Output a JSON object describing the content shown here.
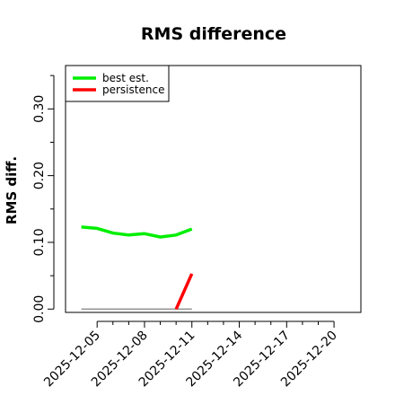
{
  "chart_data": {
    "type": "line",
    "title": "RMS difference",
    "xlabel": "",
    "ylabel": "RMS diff.",
    "x_ticks": [
      "2025-12-05",
      "2025-12-08",
      "2025-12-11",
      "2025-12-14",
      "2025-12-17",
      "2025-12-20"
    ],
    "x_tick_days": [
      5,
      8,
      11,
      14,
      17,
      20
    ],
    "xlim_days": [
      3,
      21.7
    ],
    "ylim": [
      -0.005,
      0.365
    ],
    "y_ticks": [
      0.0,
      0.1,
      0.2,
      0.3
    ],
    "y_tick_labels": [
      "0.00",
      "0.10",
      "0.20",
      "0.30"
    ],
    "y_minor_ticks": [
      0.05,
      0.15,
      0.25,
      0.35
    ],
    "legend": {
      "position": "top-left",
      "entries": [
        "best est.",
        "persistence"
      ]
    },
    "colors": {
      "best_est": "#00ee00",
      "persistence": "#ff0000",
      "baseline": "#808080"
    },
    "series": [
      {
        "name": "best est.",
        "color": "#00ee00",
        "x_days": [
          4,
          5,
          6,
          7,
          8,
          9,
          10,
          11
        ],
        "values": [
          0.123,
          0.121,
          0.114,
          0.111,
          0.113,
          0.108,
          0.111,
          0.12
        ]
      },
      {
        "name": "persistence",
        "color": "#ff0000",
        "x_days": [
          10,
          11
        ],
        "values": [
          0.0,
          0.053
        ]
      }
    ],
    "baseline": {
      "x_days": [
        4,
        11
      ],
      "value": 0.0
    }
  }
}
